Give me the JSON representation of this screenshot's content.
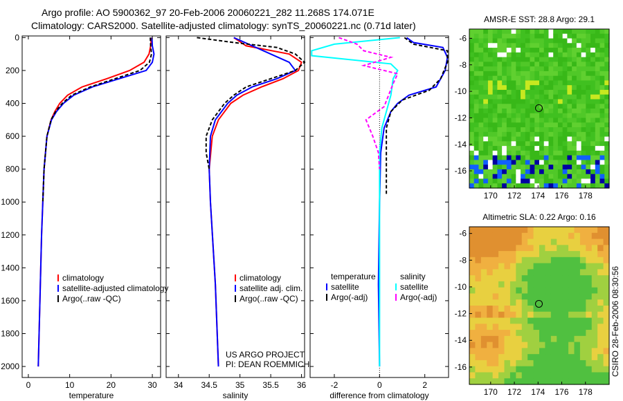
{
  "title_line1": "Argo profile: AO 5900362_97 20-Feb-2006 20060221_282 11.268S 174.071E",
  "title_line2": "Climatology: CARS2000. Satellite-adjusted climatology: synTS_20060221.nc (0.71d later)",
  "side_label": "CSIRO 28-Feb-2006 08:30:56",
  "credit_line1": "US ARGO PROJECT",
  "credit_line2": "PI: DEAN ROEMMICH",
  "colors": {
    "climatology": "#ff0000",
    "satellite": "#0000ff",
    "argo": "#000000",
    "sal_satellite": "#00ffff",
    "sal_argo": "#ff00ff"
  },
  "chart_data": [
    {
      "type": "line",
      "xlabel": "temperature",
      "ylabel": "depth",
      "xlim": [
        -1.5,
        32
      ],
      "ylim": [
        2067,
        -10
      ],
      "xticks": [
        0,
        10,
        20,
        30
      ],
      "yticks": [
        0,
        200,
        400,
        600,
        800,
        1000,
        1200,
        1400,
        1600,
        1800,
        2000
      ],
      "legend": {
        "placement": "bottom-right",
        "entries": [
          "climatology",
          "satellite-adjusted climatology",
          "Argo(..raw -QC)"
        ]
      },
      "series": [
        {
          "name": "climatology",
          "color": "#ff0000",
          "dash": "",
          "points": [
            [
              0,
              29.8
            ],
            [
              50,
              29.6
            ],
            [
              100,
              29.2
            ],
            [
              150,
              28
            ],
            [
              200,
              24.5
            ],
            [
              250,
              19
            ],
            [
              300,
              13
            ],
            [
              350,
              9.5
            ],
            [
              400,
              7.6
            ],
            [
              450,
              6.4
            ],
            [
              500,
              5.5
            ],
            [
              600,
              4.5
            ],
            [
              800,
              3.8
            ],
            [
              1000,
              3.5
            ],
            [
              1200,
              3.2
            ],
            [
              1500,
              2.9
            ],
            [
              2000,
              2.4
            ]
          ]
        },
        {
          "name": "satellite-adjusted climatology",
          "color": "#0000ff",
          "dash": "",
          "points": [
            [
              0,
              29.9
            ],
            [
              50,
              30
            ],
            [
              100,
              30.4
            ],
            [
              150,
              30
            ],
            [
              200,
              28.5
            ],
            [
              250,
              22
            ],
            [
              300,
              15.5
            ],
            [
              350,
              11
            ],
            [
              400,
              8.5
            ],
            [
              450,
              6.8
            ],
            [
              500,
              5.6
            ],
            [
              600,
              4.5
            ],
            [
              800,
              3.8
            ],
            [
              1000,
              3.5
            ],
            [
              1200,
              3.2
            ],
            [
              1500,
              2.9
            ],
            [
              2000,
              2.4
            ]
          ]
        },
        {
          "name": "Argo(..raw -QC)",
          "color": "#000000",
          "dash": "5,3",
          "points": [
            [
              0,
              29.5
            ],
            [
              50,
              29.6
            ],
            [
              100,
              29.8
            ],
            [
              150,
              29.3
            ],
            [
              200,
              27
            ],
            [
              250,
              21
            ],
            [
              300,
              15
            ],
            [
              350,
              10.5
            ],
            [
              400,
              8.2
            ],
            [
              450,
              6.6
            ],
            [
              500,
              5.5
            ],
            [
              600,
              4.5
            ],
            [
              800,
              3.8
            ],
            [
              1000,
              3.5
            ]
          ]
        }
      ]
    },
    {
      "type": "line",
      "xlabel": "salinity",
      "ylabel": "",
      "xlim": [
        33.8,
        36.05
      ],
      "ylim": [
        2067,
        -10
      ],
      "xticks": [
        34,
        34.5,
        35,
        35.5,
        36
      ],
      "legend": {
        "placement": "bottom-right",
        "entries": [
          "climatology",
          "satellite adj. clim.",
          "Argo(..raw -QC)"
        ]
      },
      "series": [
        {
          "name": "climatology",
          "color": "#ff0000",
          "dash": "",
          "points": [
            [
              0,
              34.9
            ],
            [
              50,
              35.1
            ],
            [
              100,
              35.8
            ],
            [
              150,
              36
            ],
            [
              200,
              35.95
            ],
            [
              250,
              35.7
            ],
            [
              300,
              35.35
            ],
            [
              350,
              35.05
            ],
            [
              400,
              34.85
            ],
            [
              500,
              34.65
            ],
            [
              600,
              34.55
            ],
            [
              800,
              34.5
            ],
            [
              1000,
              34.52
            ],
            [
              1500,
              34.6
            ],
            [
              2000,
              34.65
            ]
          ]
        },
        {
          "name": "satellite adj. clim.",
          "color": "#0000ff",
          "dash": "",
          "points": [
            [
              0,
              34.9
            ],
            [
              50,
              35.2
            ],
            [
              100,
              35.5
            ],
            [
              150,
              35.8
            ],
            [
              200,
              35.9
            ],
            [
              250,
              35.6
            ],
            [
              300,
              35.2
            ],
            [
              350,
              34.95
            ],
            [
              400,
              34.8
            ],
            [
              500,
              34.6
            ],
            [
              600,
              34.52
            ],
            [
              800,
              34.5
            ],
            [
              1000,
              34.52
            ],
            [
              1500,
              34.6
            ],
            [
              2000,
              34.65
            ]
          ]
        },
        {
          "name": "Argo(..raw -QC)",
          "color": "#000000",
          "dash": "5,3",
          "points": [
            [
              0,
              34.3
            ],
            [
              30,
              34.9
            ],
            [
              60,
              35.6
            ],
            [
              100,
              35.9
            ],
            [
              150,
              36.05
            ],
            [
              200,
              35.9
            ],
            [
              250,
              35.5
            ],
            [
              300,
              35.1
            ],
            [
              350,
              34.9
            ],
            [
              400,
              34.75
            ],
            [
              500,
              34.55
            ],
            [
              600,
              34.45
            ],
            [
              700,
              34.45
            ],
            [
              800,
              34.5
            ]
          ]
        }
      ]
    },
    {
      "type": "line",
      "xlabel": "difference from climatology",
      "ylabel": "",
      "xlim": [
        -3.07,
        3.05
      ],
      "ylim": [
        2067,
        -10
      ],
      "xticks": [
        -2,
        0,
        2
      ],
      "legend": {
        "placement": "bottom",
        "entries": [
          "temperature",
          "satellite",
          "Argo(-adj)",
          "salinity",
          "satellite",
          "Argo(-adj)"
        ]
      },
      "series": [
        {
          "name": "temperature satellite",
          "color": "#0000ff",
          "dash": "",
          "points": [
            [
              0,
              1.2
            ],
            [
              30,
              1.5
            ],
            [
              60,
              2.8
            ],
            [
              120,
              3.0
            ],
            [
              200,
              2.9
            ],
            [
              300,
              2.5
            ],
            [
              350,
              1.3
            ],
            [
              400,
              0.8
            ],
            [
              450,
              0.5
            ],
            [
              550,
              0.2
            ],
            [
              700,
              0.05
            ],
            [
              1000,
              0
            ],
            [
              1500,
              -0.05
            ],
            [
              2000,
              0
            ]
          ]
        },
        {
          "name": "temperature Argo(-adj)",
          "color": "#000000",
          "dash": "5,3",
          "points": [
            [
              0,
              1.1
            ],
            [
              40,
              1.5
            ],
            [
              80,
              3.0
            ],
            [
              150,
              3.0
            ],
            [
              250,
              2.7
            ],
            [
              320,
              2.2
            ],
            [
              380,
              1.0
            ],
            [
              450,
              0.5
            ],
            [
              550,
              0.3
            ],
            [
              800,
              0.3
            ],
            [
              950,
              0.3
            ]
          ]
        },
        {
          "name": "salinity satellite",
          "color": "#00ffff",
          "dash": "",
          "points": [
            [
              0,
              0.9
            ],
            [
              40,
              -2
            ],
            [
              80,
              -3
            ],
            [
              110,
              -3
            ],
            [
              160,
              0.5
            ],
            [
              200,
              0.8
            ],
            [
              250,
              0.6
            ],
            [
              350,
              0.5
            ],
            [
              450,
              0.3
            ],
            [
              550,
              0.1
            ],
            [
              700,
              0
            ],
            [
              1000,
              0
            ],
            [
              2000,
              0
            ]
          ]
        },
        {
          "name": "salinity Argo(-adj)",
          "color": "#ff00ff",
          "dash": "5,3",
          "points": [
            [
              0,
              -1.8
            ],
            [
              40,
              -1
            ],
            [
              80,
              -0.7
            ],
            [
              120,
              0.5
            ],
            [
              170,
              -0.7
            ],
            [
              220,
              0.8
            ],
            [
              280,
              0.6
            ],
            [
              350,
              0.4
            ],
            [
              420,
              0.2
            ],
            [
              500,
              -0.6
            ],
            [
              600,
              -0.3
            ],
            [
              700,
              -0.05
            ],
            [
              800,
              0
            ]
          ]
        }
      ]
    },
    {
      "type": "heatmap",
      "title": "AMSR-E SST: 28.8 Argo: 29.1",
      "xlim": [
        168.2,
        180
      ],
      "ylim": [
        -17.3,
        -5.3
      ],
      "xticks": [
        170,
        172,
        174,
        176,
        178
      ],
      "yticks": [
        -6,
        -8,
        -10,
        -12,
        -14,
        -16
      ],
      "marker": [
        174.071,
        -11.268
      ]
    },
    {
      "type": "heatmap",
      "title": "Altimetric SLA: 0.22 Argo: 0.16",
      "xlim": [
        168.2,
        180
      ],
      "ylim": [
        -17.3,
        -5.5
      ],
      "xticks": [
        170,
        172,
        174,
        176,
        178
      ],
      "yticks": [
        -6,
        -8,
        -10,
        -12,
        -14,
        -16
      ],
      "marker": [
        174.071,
        -11.268
      ]
    }
  ]
}
